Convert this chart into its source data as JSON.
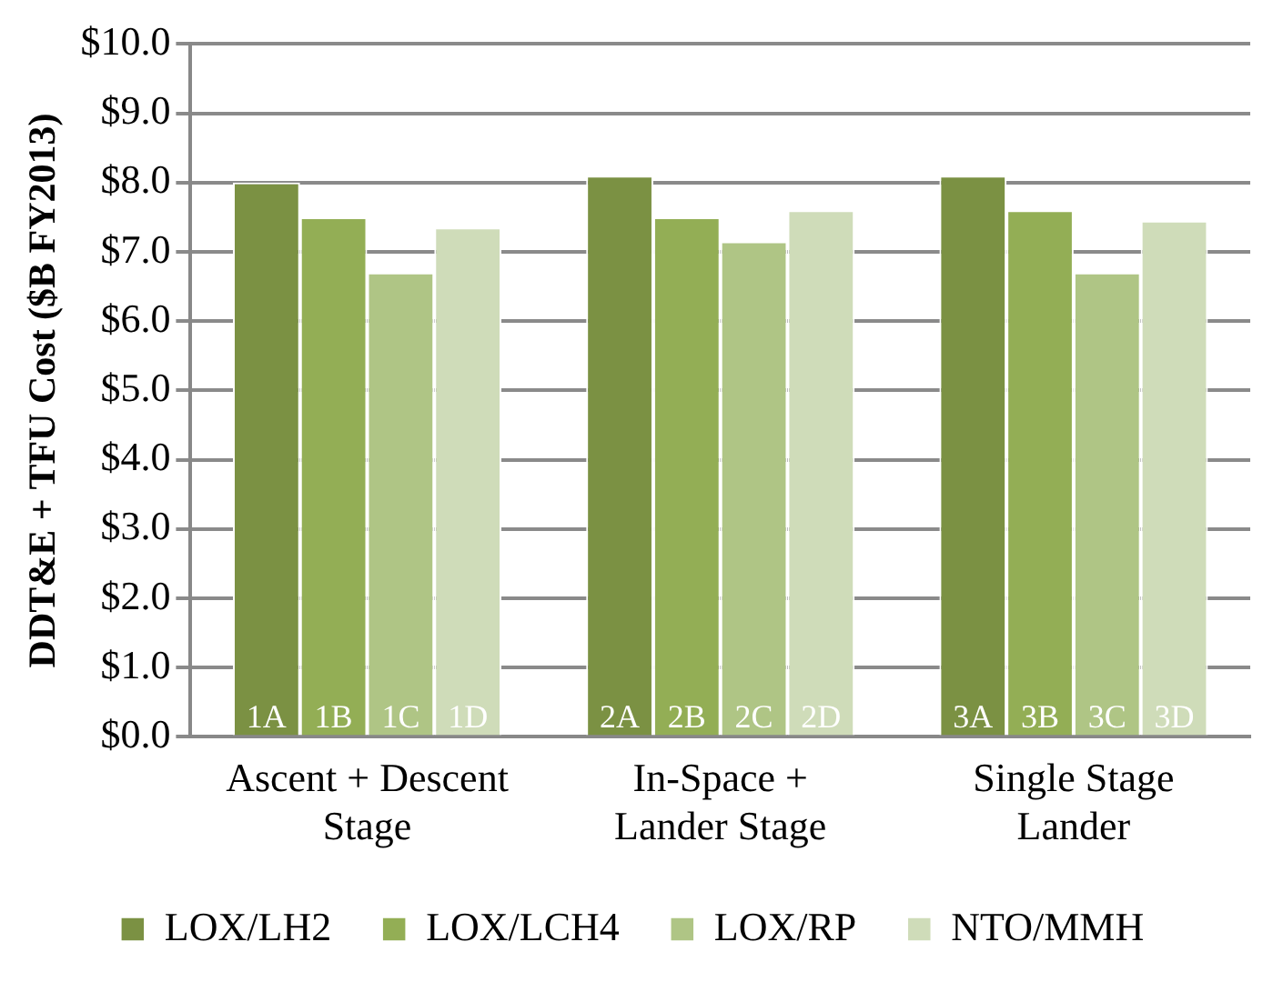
{
  "chart_data": {
    "type": "bar",
    "ylabel": "DDT&E + TFU Cost ($B FY2013)",
    "categories": [
      "Ascent + Descent Stage",
      "In-Space + Lander Stage",
      "Single Stage Lander"
    ],
    "series": [
      {
        "name": "LOX/LH2",
        "color": "#7b9143",
        "values": [
          8.0,
          8.1,
          8.1
        ]
      },
      {
        "name": "LOX/LCH4",
        "color": "#93ae55",
        "values": [
          7.5,
          7.5,
          7.6
        ]
      },
      {
        "name": "LOX/RP",
        "color": "#afc585",
        "values": [
          6.7,
          7.15,
          6.7
        ]
      },
      {
        "name": "NTO/MMH",
        "color": "#cfdcb9",
        "values": [
          7.35,
          7.6,
          7.45
        ]
      }
    ],
    "annotations": [
      {
        "text": "1A",
        "x": "Ascent + Descent Stage",
        "y": 0
      },
      {
        "text": "1B",
        "x": "Ascent + Descent Stage",
        "y": 0
      },
      {
        "text": "1C",
        "x": "Ascent + Descent Stage",
        "y": 0
      },
      {
        "text": "1D",
        "x": "Ascent + Descent Stage",
        "y": 0
      },
      {
        "text": "2A",
        "x": "In-Space + Lander Stage",
        "y": 0
      },
      {
        "text": "2B",
        "x": "In-Space + Lander Stage",
        "y": 0
      },
      {
        "text": "2C",
        "x": "In-Space + Lander Stage",
        "y": 0
      },
      {
        "text": "2D",
        "x": "In-Space + Lander Stage",
        "y": 0
      },
      {
        "text": "3A",
        "x": "Single Stage Lander",
        "y": 0
      },
      {
        "text": "3B",
        "x": "Single Stage Lander",
        "y": 0
      },
      {
        "text": "3C",
        "x": "Single Stage Lander",
        "y": 0
      },
      {
        "text": "3D",
        "x": "Single Stage Lander",
        "y": 0
      }
    ],
    "ylim": [
      0,
      10
    ],
    "yticks": [
      {
        "value": 0,
        "label": "$0.0"
      },
      {
        "value": 1,
        "label": "$1.0"
      },
      {
        "value": 2,
        "label": "$2.0"
      },
      {
        "value": 3,
        "label": "$3.0"
      },
      {
        "value": 4,
        "label": "$4.0"
      },
      {
        "value": 5,
        "label": "$5.0"
      },
      {
        "value": 6,
        "label": "$6.0"
      },
      {
        "value": 7,
        "label": "$7.0"
      },
      {
        "value": 8,
        "label": "$8.0"
      },
      {
        "value": 9,
        "label": "$9.0"
      },
      {
        "value": 10,
        "label": "$10.0"
      }
    ],
    "grid": "y",
    "legend": "bottom"
  }
}
